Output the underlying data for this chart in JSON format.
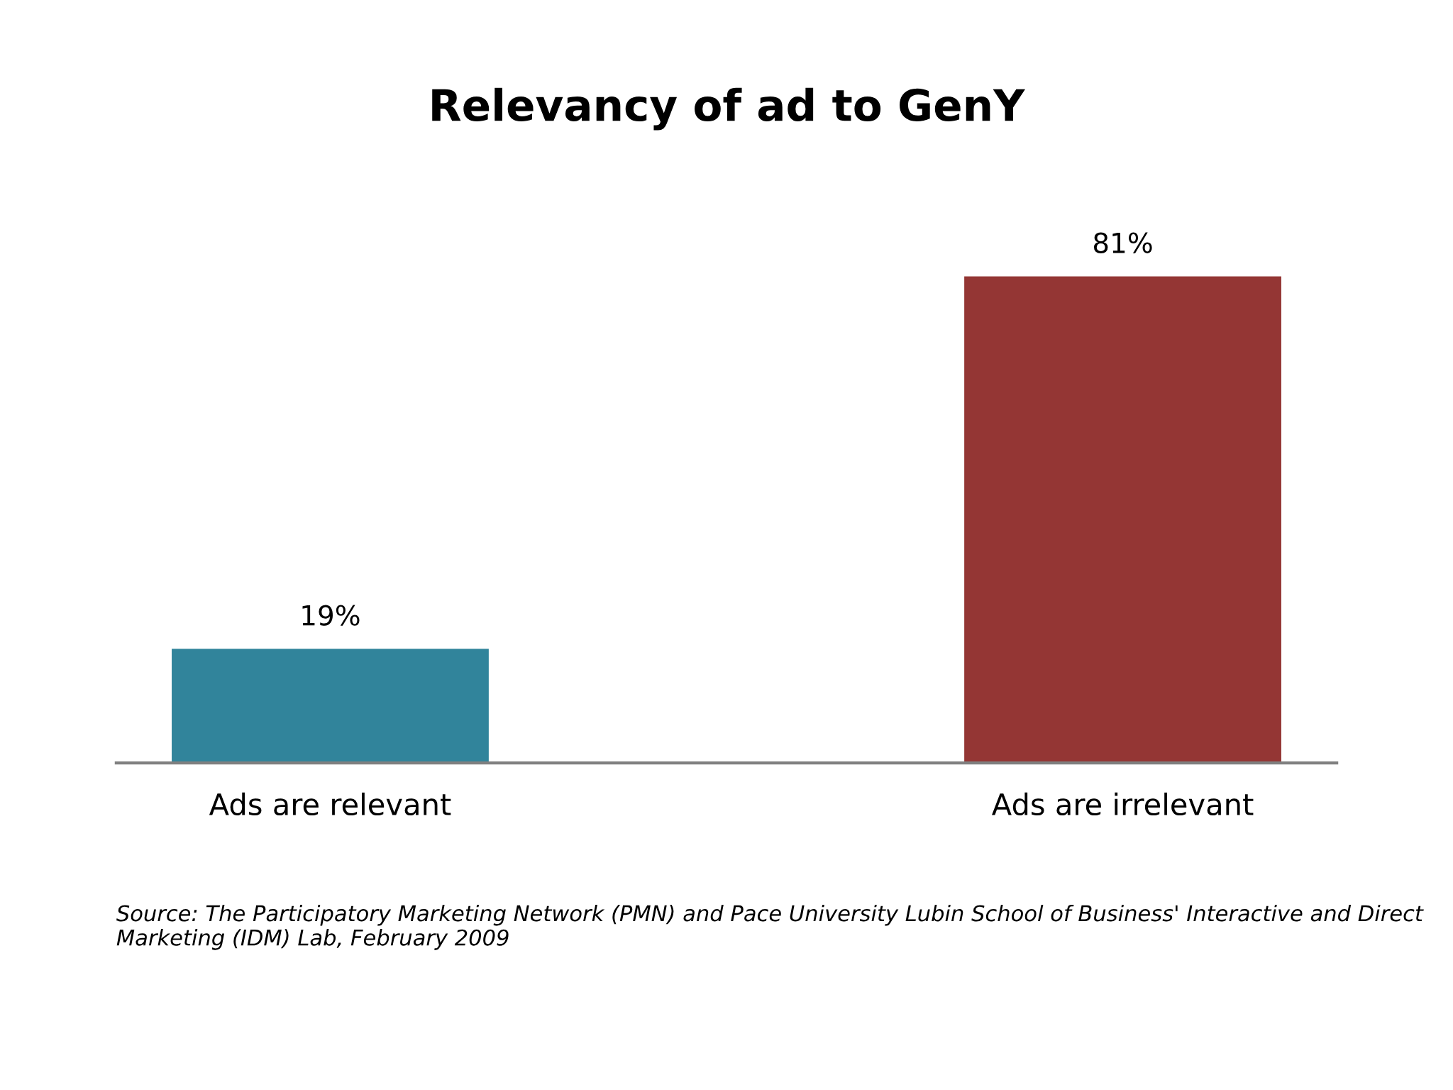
{
  "chart_data": {
    "type": "bar",
    "title": "Relevancy of ad to GenY",
    "categories": [
      "Ads are relevant",
      "Ads are irrelevant"
    ],
    "values": [
      19,
      81
    ],
    "colors": [
      "#31849b",
      "#943634"
    ],
    "value_labels": [
      "19%",
      "81%"
    ],
    "grid": false,
    "legend": false,
    "annotations": [
      "Source: The Participatory Marketing Network (PMN) and Pace University Lubin School of Business' Interactive and Direct Marketing (IDM) Lab, February 2009"
    ]
  }
}
